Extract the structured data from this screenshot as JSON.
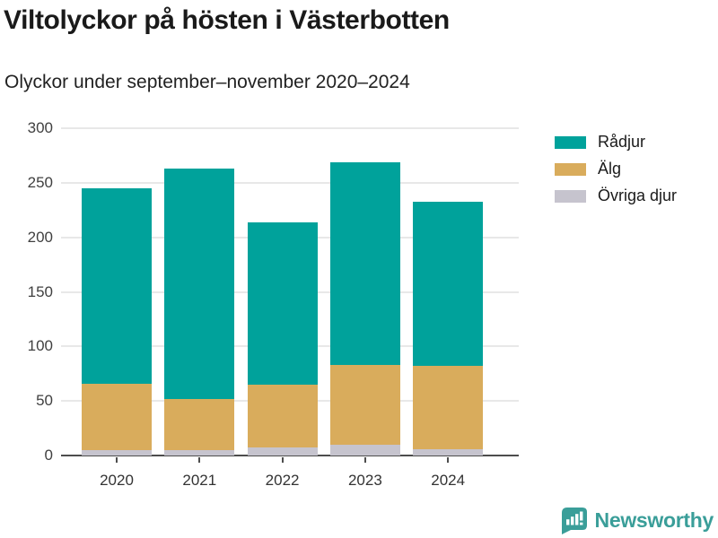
{
  "header": {
    "title": "Viltolyckor på hösten i Västerbotten",
    "subtitle": "Olyckor under september–november 2020–2024"
  },
  "chart_data": {
    "type": "bar",
    "stacked": true,
    "title": "Viltolyckor på hösten i Västerbotten",
    "subtitle": "Olyckor under september–november 2020–2024",
    "categories": [
      "2020",
      "2021",
      "2022",
      "2023",
      "2024"
    ],
    "series": [
      {
        "name": "Rådjur",
        "color": "#00a29b",
        "values": [
          179,
          211,
          149,
          186,
          151
        ]
      },
      {
        "name": "Älg",
        "color": "#d9ac5c",
        "values": [
          61,
          47,
          58,
          73,
          76
        ]
      },
      {
        "name": "Övriga djur",
        "color": "#c6c4ce",
        "values": [
          5,
          5,
          7,
          10,
          6
        ]
      }
    ],
    "stack_order_bottom_to_top": [
      "Övriga djur",
      "Älg",
      "Rådjur"
    ],
    "totals": [
      245,
      263,
      214,
      269,
      233
    ],
    "xlabel": "",
    "ylabel": "",
    "ylim": [
      0,
      300
    ],
    "yticks": [
      0,
      50,
      100,
      150,
      200,
      250,
      300
    ],
    "grid": "horizontal",
    "grid_color": "#e8e8e8",
    "axis_color": "#4d4d4d",
    "legend_position": "top-right"
  },
  "footer": {
    "brand": "Newsworthy",
    "brand_color": "#3a9e99",
    "logo_icon": "newsworthy-speech-bubble-chart-icon"
  }
}
